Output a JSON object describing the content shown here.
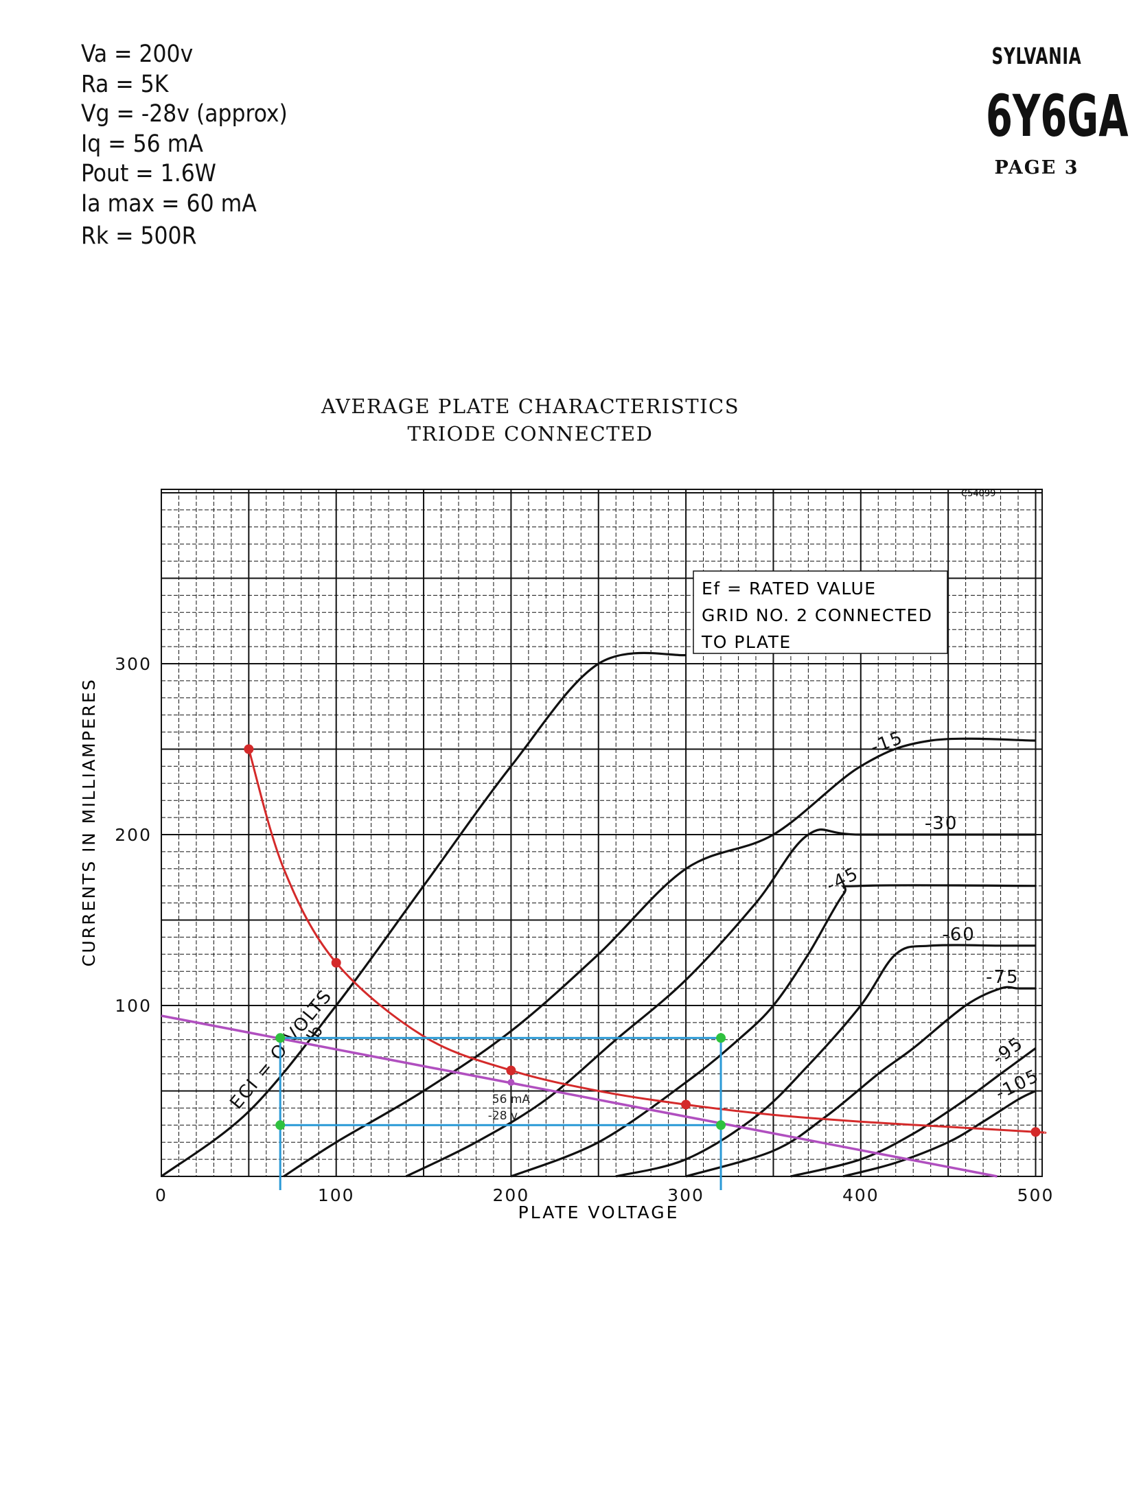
{
  "specs": {
    "va": "Va = 200v",
    "ra": "Ra = 5K",
    "vg": "Vg = -28v (approx)",
    "iq": "Iq = 56 mA",
    "pout": "Pout = 1.6W",
    "ia_max": "Ia max = 60 mA",
    "rk": "Rk = 500R"
  },
  "header": {
    "maker": "SYLVANIA",
    "tube": "6Y6GA",
    "page": "PAGE 3"
  },
  "colors": {
    "curves": "#111111",
    "grid": "#111111",
    "dissipation": "#d42a2a",
    "load_line": "#b04fbf",
    "swing_box": "#2b9ad6",
    "swing_points": "#2fc13e"
  },
  "chart_data": {
    "type": "line",
    "title": "AVERAGE PLATE CHARACTERISTICS",
    "subtitle": "TRIODE CONNECTED",
    "code": "C54099",
    "xlabel": "PLATE VOLTAGE",
    "ylabel": "CURRENTS IN MILLIAMPERES",
    "xlim": [
      0,
      505
    ],
    "ylim": [
      0,
      400
    ],
    "x_ticks": [
      0,
      100,
      200,
      300,
      400,
      500
    ],
    "x_tick_labels": [
      "0",
      "100",
      "200",
      "300",
      "400",
      "500"
    ],
    "y_ticks": [
      100,
      200,
      300
    ],
    "y_tick_labels": [
      "100",
      "200",
      "300"
    ],
    "grid": true,
    "note": {
      "line1": "Ef = RATED VALUE",
      "line2": "GRID NO. 2 CONNECTED",
      "line3": "TO PLATE"
    },
    "curve_axis_label": "Ib",
    "series": [
      {
        "name": "ECI = O VOLTS",
        "label_at": 1,
        "x": [
          0,
          50,
          100,
          150,
          200,
          250,
          300
        ],
        "y": [
          0,
          38,
          100,
          170,
          240,
          300,
          305
        ]
      },
      {
        "name": "-15",
        "label_at": 7,
        "x": [
          70,
          100,
          150,
          200,
          250,
          300,
          350,
          400,
          440,
          500
        ],
        "y": [
          0,
          20,
          50,
          85,
          130,
          180,
          200,
          240,
          255,
          255
        ]
      },
      {
        "name": "-30",
        "label_at": 7,
        "x": [
          140,
          180,
          220,
          260,
          300,
          340,
          370,
          400,
          500
        ],
        "y": [
          0,
          20,
          45,
          80,
          115,
          160,
          200,
          200,
          200
        ]
      },
      {
        "name": "-45",
        "label_at": 6,
        "x": [
          200,
          250,
          300,
          330,
          350,
          370,
          390,
          400,
          500
        ],
        "y": [
          0,
          20,
          55,
          80,
          100,
          130,
          165,
          170,
          170
        ]
      },
      {
        "name": "-60",
        "label_at": 6,
        "x": [
          260,
          300,
          340,
          370,
          400,
          420,
          440,
          480,
          500
        ],
        "y": [
          0,
          10,
          35,
          65,
          100,
          130,
          135,
          135,
          135
        ]
      },
      {
        "name": "-75",
        "label_at": 6,
        "x": [
          300,
          350,
          380,
          410,
          430,
          460,
          480,
          490,
          500
        ],
        "y": [
          0,
          15,
          35,
          60,
          75,
          100,
          110,
          110,
          110
        ]
      },
      {
        "name": "-95",
        "label_at": 5,
        "x": [
          360,
          400,
          430,
          460,
          480,
          500
        ],
        "y": [
          0,
          10,
          25,
          45,
          60,
          75
        ]
      },
      {
        "name": "-105",
        "label_at": 5,
        "x": [
          390,
          420,
          450,
          470,
          490,
          500
        ],
        "y": [
          0,
          8,
          20,
          32,
          45,
          50
        ]
      }
    ],
    "dissipation_curve": {
      "x": [
        50,
        70,
        100,
        150,
        200,
        250,
        300,
        350,
        400,
        450,
        500,
        505
      ],
      "y": [
        250,
        180,
        125,
        82,
        62,
        50,
        42,
        36,
        32,
        29,
        26,
        25.5
      ],
      "points": [
        [
          50,
          250
        ],
        [
          100,
          125
        ],
        [
          200,
          62
        ],
        [
          300,
          42
        ],
        [
          500,
          26
        ]
      ]
    },
    "load_line": {
      "x": [
        0,
        478
      ],
      "y": [
        94,
        0
      ]
    },
    "operating_point": {
      "x": 200,
      "y": 55,
      "label_current": "56 mA",
      "label_voltage": "-28 v"
    },
    "swing_box": {
      "x_min": 68,
      "x_max": 320,
      "y_min": 30,
      "y_max": 81
    },
    "swing_points": [
      [
        68,
        81
      ],
      [
        320,
        81
      ],
      [
        68,
        30
      ],
      [
        320,
        30
      ]
    ]
  }
}
